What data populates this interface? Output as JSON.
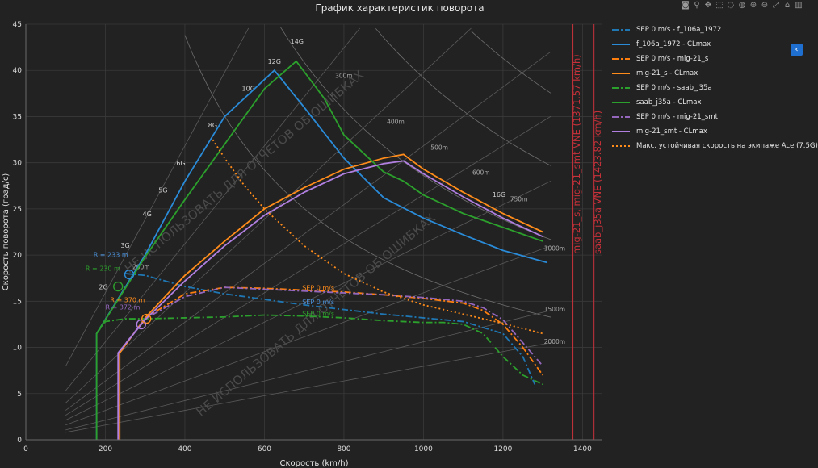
{
  "chart_data": {
    "type": "line",
    "title": "График характеристик поворота",
    "xlabel": "Скорость (km/h)",
    "ylabel": "Скорость поворота (град/с)",
    "xlim": [
      0,
      1450
    ],
    "ylim": [
      0,
      45
    ],
    "xticks": [
      "0",
      "200",
      "400",
      "600",
      "800",
      "1000",
      "1200",
      "1400"
    ],
    "yticks": [
      "0",
      "5",
      "10",
      "15",
      "20",
      "25",
      "30",
      "35",
      "40",
      "45"
    ],
    "grid": true,
    "legend_position": "right",
    "series": [
      {
        "name": "SEP 0 m/s - f_106a_1972",
        "color": "#1f77b4",
        "dash": "dashdot",
        "x": [
          250,
          300,
          400,
          500,
          600,
          700,
          800,
          900,
          1000,
          1100,
          1200,
          1250,
          1280
        ],
        "y": [
          18,
          17.8,
          16.6,
          15.8,
          15.2,
          14.6,
          14.1,
          13.6,
          13.2,
          12.8,
          11.5,
          9,
          6
        ]
      },
      {
        "name": "f_106a_1972 - CLmax",
        "color": "#2a8bd8",
        "dash": "solid",
        "x": [
          178,
          178,
          300,
          400,
          500,
          625,
          700,
          800,
          900,
          1000,
          1100,
          1200,
          1310
        ],
        "y": [
          0,
          11.5,
          20,
          28,
          35,
          40,
          36,
          30.5,
          26.2,
          24,
          22.2,
          20.5,
          19.2
        ]
      },
      {
        "name": "SEP 0 m/s - mig-21_s",
        "color": "#ff7f0e",
        "dash": "dashdot",
        "x": [
          300,
          400,
          500,
          600,
          700,
          800,
          900,
          1000,
          1100,
          1150,
          1200,
          1250,
          1300
        ],
        "y": [
          13.2,
          15.8,
          16.5,
          16.4,
          16.2,
          16,
          15.7,
          15.3,
          14.8,
          14,
          12.5,
          10,
          7
        ]
      },
      {
        "name": "mig-21_s - CLmax",
        "color": "#ff8c1a",
        "dash": "solid",
        "x": [
          236,
          236,
          300,
          400,
          500,
          600,
          700,
          800,
          900,
          950,
          1000,
          1100,
          1200,
          1300
        ],
        "y": [
          0,
          9.4,
          13.2,
          17.8,
          21.5,
          25,
          27.3,
          29.3,
          30.5,
          30.9,
          29.3,
          26.8,
          24.5,
          22.5
        ]
      },
      {
        "name": "SEP 0 m/s - saab_j35a",
        "color": "#2ca02c",
        "dash": "dashdot",
        "x": [
          178,
          200,
          250,
          300,
          400,
          500,
          600,
          700,
          800,
          900,
          1000,
          1050,
          1100,
          1150,
          1200,
          1250,
          1300
        ],
        "y": [
          11.5,
          12.8,
          13.1,
          13.1,
          13.2,
          13.3,
          13.5,
          13.4,
          13.2,
          12.9,
          12.7,
          12.7,
          12.5,
          11.5,
          9,
          7,
          6
        ]
      },
      {
        "name": "saab_j35a - CLmax",
        "color": "#2ca02c",
        "dash": "solid",
        "x": [
          178,
          178,
          300,
          400,
          500,
          600,
          680,
          750,
          800,
          900,
          950,
          1000,
          1100,
          1200,
          1300
        ],
        "y": [
          0,
          11.5,
          19.8,
          26,
          32,
          38,
          41,
          37,
          33,
          29,
          28,
          26.5,
          24.5,
          23,
          21.5
        ]
      },
      {
        "name": "SEP 0 m/s - mig-21_smt",
        "color": "#9467bd",
        "dash": "dashdot",
        "x": [
          232,
          300,
          400,
          500,
          600,
          700,
          800,
          900,
          1000,
          1100,
          1150,
          1200,
          1250,
          1300
        ],
        "y": [
          9.4,
          13.1,
          15.5,
          16.5,
          16.3,
          16.1,
          15.9,
          15.7,
          15.4,
          15,
          14.3,
          13,
          10.5,
          8
        ]
      },
      {
        "name": "mig-21_smt - CLmax",
        "color": "#b07fe0",
        "dash": "solid",
        "x": [
          232,
          232,
          300,
          400,
          500,
          600,
          700,
          800,
          900,
          950,
          1000,
          1100,
          1200,
          1300
        ],
        "y": [
          0,
          9.4,
          13,
          17.2,
          21,
          24.3,
          26.8,
          28.8,
          29.9,
          30.2,
          28.8,
          26.3,
          24,
          22
        ]
      },
      {
        "name": "Макс. устойчивая скорость на экипаже Ace (7.5G)",
        "color": "#ff8c1a",
        "dash": "dot",
        "x": [
          470,
          500,
          550,
          600,
          700,
          800,
          900,
          1000,
          1100,
          1200,
          1300
        ],
        "y": [
          32.5,
          30.5,
          27.5,
          25,
          21,
          18,
          16,
          14.6,
          13.6,
          12.6,
          11.5
        ]
      }
    ],
    "vertical_lines": [
      {
        "x": 1375,
        "color": "#c8313a",
        "label": "mig-21_s, mig-21_smt VNE (1371.57 km/h)"
      },
      {
        "x": 1428,
        "color": "#c8313a",
        "label": "saab_j35a VNE (1423.82 km/h)"
      }
    ],
    "g_labels": [
      {
        "text": "2G",
        "x": 195,
        "y": 16.3
      },
      {
        "text": "3G",
        "x": 250,
        "y": 20.8
      },
      {
        "text": "4G",
        "x": 305,
        "y": 24.2
      },
      {
        "text": "5G",
        "x": 345,
        "y": 26.8
      },
      {
        "text": "6G",
        "x": 390,
        "y": 29.7
      },
      {
        "text": "8G",
        "x": 470,
        "y": 33.8
      },
      {
        "text": "10G",
        "x": 560,
        "y": 37.8
      },
      {
        "text": "12G",
        "x": 625,
        "y": 40.7
      },
      {
        "text": "14G",
        "x": 682,
        "y": 42.9
      },
      {
        "text": "16G",
        "x": 1190,
        "y": 26.3
      }
    ],
    "radius_labels": [
      {
        "text": "200m",
        "x": 290,
        "y": 18.5
      },
      {
        "text": "300m",
        "x": 800,
        "y": 39.2
      },
      {
        "text": "400m",
        "x": 930,
        "y": 34.2
      },
      {
        "text": "500m",
        "x": 1040,
        "y": 31.4
      },
      {
        "text": "600m",
        "x": 1145,
        "y": 28.7
      },
      {
        "text": "750m",
        "x": 1240,
        "y": 25.8
      },
      {
        "text": "1000m",
        "x": 1330,
        "y": 20.5
      },
      {
        "text": "1500m",
        "x": 1330,
        "y": 13.9
      },
      {
        "text": "2000m",
        "x": 1330,
        "y": 10.4
      }
    ],
    "annotations": [
      {
        "text": "R = 233 m",
        "x": 170,
        "y": 19.8,
        "color": "#4a90d9"
      },
      {
        "text": "R = 230 m",
        "x": 150,
        "y": 18.3,
        "color": "#2ca02c"
      },
      {
        "text": "R = 370 m",
        "x": 212,
        "y": 14.9,
        "color": "#ff8c1a"
      },
      {
        "text": "R = 372 m",
        "x": 200,
        "y": 14.1,
        "color": "#9467bd"
      },
      {
        "text": "SEP 0 m/s",
        "x": 695,
        "y": 16.2,
        "color": "#ff8c1a"
      },
      {
        "text": "SEP 0 m/s",
        "x": 695,
        "y": 14.7,
        "color": "#4a90d9"
      },
      {
        "text": "SEP 0 m/s",
        "x": 695,
        "y": 13.4,
        "color": "#2ca02c"
      }
    ],
    "markers": [
      {
        "x": 260,
        "y": 17.9,
        "color": "#2a8bd8"
      },
      {
        "x": 232,
        "y": 16.6,
        "color": "#2ca02c"
      },
      {
        "x": 303,
        "y": 13.1,
        "color": "#ff8c1a"
      },
      {
        "x": 290,
        "y": 12.5,
        "color": "#b07fe0"
      }
    ],
    "watermark": "НЕ ИСПОЛЬЗОВАТЬ ДЛЯ ОТЧЕТОВ ОБ ОШИБКАХ"
  },
  "ui": {
    "modebar_icons": [
      "camera-icon",
      "zoom-icon",
      "pan-icon",
      "select-box-icon",
      "lasso-icon",
      "comment-icon",
      "zoom-in-icon",
      "zoom-out-icon",
      "autoscale-icon",
      "reset-icon",
      "plotly-logo-icon"
    ],
    "modebar_glyphs": [
      "◙",
      "⚲",
      "✥",
      "⬚",
      "◌",
      "◍",
      "⊕",
      "⊖",
      "⤢",
      "⌂",
      "▥"
    ],
    "collapse_glyph": "‹"
  }
}
